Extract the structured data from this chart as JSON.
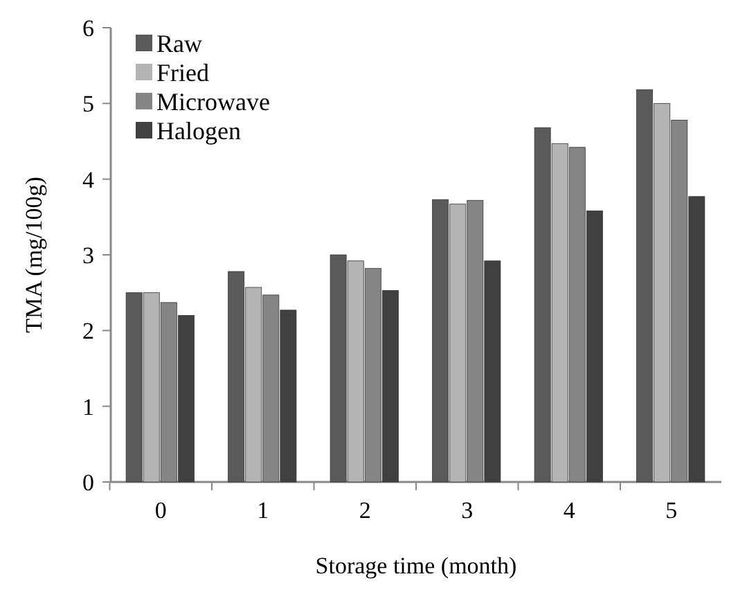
{
  "chart_data": {
    "type": "bar",
    "xlabel": "Storage time (month)",
    "ylabel": "TMA  (mg/100g)",
    "categories": [
      "0",
      "1",
      "2",
      "3",
      "4",
      "5"
    ],
    "series": [
      {
        "name": "Raw",
        "color": "#5a5a5a",
        "values": [
          2.5,
          2.78,
          3.0,
          3.73,
          4.68,
          5.18
        ]
      },
      {
        "name": "Fried",
        "color": "#b4b4b4",
        "values": [
          2.5,
          2.57,
          2.92,
          3.67,
          4.47,
          5.0
        ]
      },
      {
        "name": "Microwave",
        "color": "#858585",
        "values": [
          2.37,
          2.47,
          2.82,
          3.72,
          4.42,
          4.78
        ]
      },
      {
        "name": "Halogen",
        "color": "#404040",
        "values": [
          2.2,
          2.27,
          2.53,
          2.92,
          3.58,
          3.77
        ]
      }
    ],
    "ylim": [
      0,
      6
    ],
    "yticks": [
      0,
      1,
      2,
      3,
      4,
      5,
      6
    ],
    "legend": "top left"
  }
}
